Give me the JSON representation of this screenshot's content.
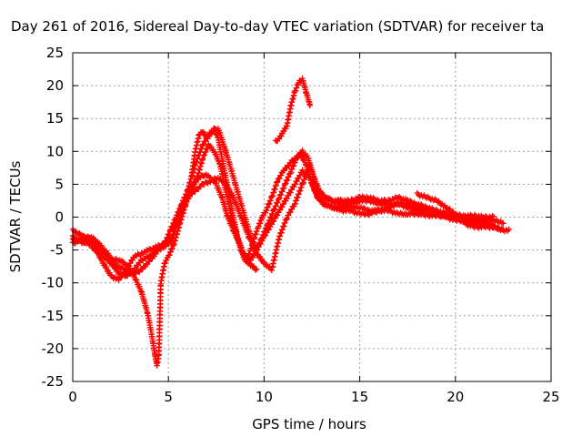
{
  "chart_data": {
    "type": "scatter",
    "title": "Day 261 of 2016, Sidereal Day-to-day VTEC variation (SDTVAR) for receiver ta",
    "xlabel": "GPS time / hours",
    "ylabel": "SDTVAR / TECUs",
    "xlim": [
      0,
      25
    ],
    "ylim": [
      -25,
      25
    ],
    "x_ticks": [
      "0",
      "5",
      "10",
      "15",
      "20",
      "25"
    ],
    "y_ticks": [
      "25",
      "20",
      "15",
      "10",
      "5",
      "0",
      "-5",
      "-10",
      "-15",
      "-20",
      "-25"
    ],
    "grid": true,
    "legend": "none",
    "marker": "plus",
    "color": "#ff0000",
    "series": [
      {
        "x": [
          0.0,
          0.3,
          0.6,
          0.9,
          1.2,
          1.5,
          1.8,
          2.1,
          2.4,
          2.7,
          3.0,
          3.3,
          3.6,
          3.9,
          4.1,
          4.3,
          4.4,
          4.5,
          4.6,
          4.8,
          5.0,
          5.3,
          5.6,
          5.9,
          6.2,
          6.5,
          6.8,
          7.1,
          7.4,
          7.7,
          8.0,
          8.3,
          8.6,
          8.9,
          9.1,
          9.3,
          9.5,
          9.7,
          9.9,
          10.1,
          10.4,
          10.7,
          11.0,
          11.3,
          11.6,
          11.9,
          12.2,
          12.5,
          12.8,
          13.1,
          13.5,
          14.0,
          14.5,
          15.0,
          15.5,
          16.0,
          16.5,
          17.0,
          17.5,
          18.0,
          18.5,
          19.0,
          19.5,
          20.0,
          20.5,
          21.0,
          21.5,
          22.0,
          22.5
        ],
        "y": [
          -3,
          -3.5,
          -4,
          -3,
          -3.5,
          -4.5,
          -5.5,
          -6.5,
          -6.5,
          -7,
          -8,
          -9.5,
          -11.5,
          -14.5,
          -17.5,
          -21,
          -22.5,
          -21,
          -10,
          -7,
          -6,
          -4,
          -1,
          2,
          4,
          6,
          9,
          11,
          10,
          8,
          4,
          0,
          -3,
          -5.5,
          -6.5,
          -5,
          -3,
          -1.5,
          0,
          1,
          3,
          5.5,
          7,
          8,
          9,
          9.5,
          8,
          5,
          3,
          2,
          1.5,
          1.5,
          1.5,
          1.5,
          1,
          1,
          1,
          0.5,
          0.5,
          0.5,
          0.3,
          0.2,
          0.2,
          0,
          -0.2,
          -0.3,
          -0.5,
          -0.5,
          -0.8
        ]
      },
      {
        "x": [
          0.0,
          0.3,
          0.6,
          0.9,
          1.2,
          1.5,
          1.8,
          2.1,
          2.4,
          2.7,
          3.0,
          3.3,
          3.6,
          3.9,
          4.2,
          4.5,
          4.8,
          5.1,
          5.4,
          5.7,
          6.0,
          6.3,
          6.6,
          6.9,
          7.2,
          7.5,
          7.8,
          8.1,
          8.4,
          8.7,
          9.0,
          9.3,
          9.6,
          9.9,
          10.2,
          10.5,
          10.8,
          11.1,
          11.4,
          11.7,
          12.0,
          12.3,
          12.6,
          12.9,
          13.2,
          13.5,
          14.0,
          14.5,
          15.0,
          15.5,
          16.0,
          16.5,
          17.0,
          17.5,
          18.0,
          18.5,
          19.0,
          19.5,
          20.0,
          20.5,
          21.0,
          21.5,
          22.0
        ],
        "y": [
          -2,
          -2.5,
          -3,
          -3.5,
          -4,
          -5,
          -6,
          -7,
          -7.5,
          -8,
          -8.5,
          -8.5,
          -8,
          -7,
          -6,
          -5,
          -4,
          -2,
          0,
          2,
          4,
          5,
          6,
          6.5,
          6,
          5,
          3,
          0,
          -2,
          -4,
          -6,
          -6.5,
          -5,
          -3,
          -1,
          1,
          3,
          5,
          7,
          9,
          10,
          9,
          6,
          4,
          3,
          2.5,
          2,
          2,
          2.5,
          2.5,
          2,
          2,
          2,
          1.5,
          1,
          0.5,
          0.5,
          0.5,
          0.3,
          0.2,
          0.2,
          0,
          0
        ]
      },
      {
        "x": [
          0.0,
          0.4,
          0.8,
          1.2,
          1.6,
          2.0,
          2.4,
          2.8,
          3.2,
          3.6,
          4.0,
          4.4,
          4.8,
          5.2,
          5.6,
          6.0,
          6.4,
          6.8,
          7.2,
          7.6,
          8.0,
          8.4,
          8.8,
          9.2,
          9.6,
          10.0,
          10.4,
          10.8,
          11.2,
          11.6,
          12.0,
          12.4,
          12.8,
          13.2,
          13.6,
          14.0,
          14.5,
          15.0,
          15.5,
          16.0,
          16.5,
          17.0,
          17.5,
          18.0,
          18.5,
          19.0,
          19.5,
          20.0,
          20.5,
          21.0,
          21.5,
          22.0
        ],
        "y": [
          -3.5,
          -3.5,
          -4,
          -5,
          -7,
          -9,
          -9.5,
          -8,
          -6,
          -5.5,
          -5,
          -4.5,
          -4,
          -3,
          0,
          3,
          4,
          5,
          5.5,
          6,
          5,
          3,
          0,
          -3,
          -5,
          -3,
          -1,
          1,
          3,
          5,
          7,
          6,
          3,
          2,
          1.5,
          1,
          1,
          0.5,
          0.5,
          1,
          1.5,
          2,
          2,
          1.5,
          1,
          0.5,
          0,
          -0.5,
          -0.5,
          -0.8,
          -1,
          -1.2
        ]
      },
      {
        "x": [
          0.0,
          0.4,
          0.8,
          1.2,
          1.6,
          2.0,
          2.4,
          2.8,
          3.2,
          3.6,
          4.0,
          4.4,
          4.8,
          5.2,
          5.6,
          6.0,
          6.4,
          6.8,
          7.2,
          7.6,
          8.0,
          8.4,
          8.8,
          9.2,
          9.6,
          10.0,
          10.4,
          10.8,
          11.2,
          11.6,
          12.0,
          12.4,
          12.8,
          13.2,
          13.6,
          14.0,
          14.5,
          15.0,
          15.5,
          16.0,
          16.5,
          17.0,
          17.5,
          18.0,
          18.5,
          19.0,
          19.5,
          20.0,
          20.5,
          21.0,
          21.5,
          22.0,
          22.5
        ],
        "y": [
          -4,
          -3.5,
          -3,
          -4.5,
          -6,
          -7,
          -8.5,
          -9,
          -8,
          -6.5,
          -6,
          -5,
          -4.5,
          -3.5,
          1,
          4,
          8,
          11,
          13,
          13.5,
          10,
          6,
          2,
          -2,
          -5.5,
          -7,
          -8,
          -3,
          0,
          2,
          5,
          8,
          4,
          3,
          2.5,
          2.5,
          2.5,
          3,
          3,
          2.5,
          2.5,
          3,
          2.5,
          2,
          1.5,
          1,
          0.5,
          0,
          -0.5,
          -1,
          -1,
          -1.5,
          -2
        ]
      },
      {
        "x": [
          6.2,
          6.4,
          6.6,
          6.8,
          7.0,
          7.2,
          7.4,
          7.6,
          7.8,
          8.0,
          8.2,
          8.4,
          8.6,
          8.8,
          9.0,
          9.2,
          9.4,
          9.6
        ],
        "y": [
          6,
          10,
          12.5,
          13,
          12,
          12.5,
          13.5,
          12,
          9,
          6,
          3,
          0,
          -3,
          -5,
          -6.5,
          -7,
          -7.5,
          -8
        ]
      },
      {
        "x": [
          10.6,
          10.8,
          11.0,
          11.2,
          11.4,
          11.6,
          11.8,
          12.0,
          12.2,
          12.4
        ],
        "y": [
          11.5,
          12,
          13,
          14,
          17,
          19,
          20.5,
          21,
          19,
          17
        ]
      },
      {
        "x": [
          18.0,
          18.5,
          19.0,
          19.5,
          20.0,
          20.5,
          21.0,
          21.5,
          22.0,
          22.5,
          22.8
        ],
        "y": [
          3.5,
          3,
          2.5,
          1.5,
          0.5,
          -1,
          -1.5,
          -1.5,
          -1.5,
          -2,
          -2
        ]
      }
    ]
  }
}
